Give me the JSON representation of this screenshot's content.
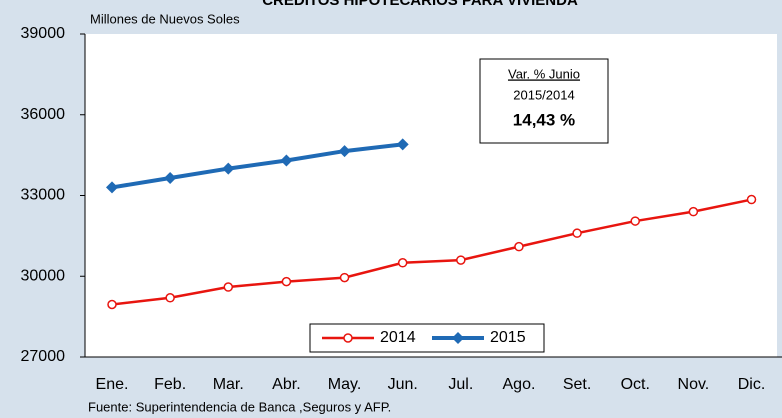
{
  "chart_data": {
    "type": "line",
    "title": "CRÉDITOS HIPOTECARIOS PARA VIVIENDA",
    "subtitle": "Millones de Nuevos Soles",
    "source": "Fuente: Superintendencia de Banca ,Seguros y AFP.",
    "annotation": {
      "line1": "Var. % Junio",
      "line2": "2015/2014",
      "line3": "14,43 %"
    },
    "categories": [
      "Ene.",
      "Feb.",
      "Mar.",
      "Abr.",
      "May.",
      "Jun.",
      "Jul.",
      "Ago.",
      "Set.",
      "Oct.",
      "Nov.",
      "Dic."
    ],
    "series": [
      {
        "name": "2014",
        "color": "#e8150f",
        "marker": "circle",
        "values": [
          28950,
          29200,
          29600,
          29800,
          29950,
          30500,
          30600,
          31100,
          31600,
          32050,
          32400,
          32850
        ]
      },
      {
        "name": "2015",
        "color": "#1f6ab5",
        "marker": "diamond",
        "values": [
          33300,
          33650,
          34000,
          34300,
          34650,
          34900,
          null,
          null,
          null,
          null,
          null,
          null
        ]
      }
    ],
    "ylim": [
      27000,
      39000
    ],
    "yticks": [
      27000,
      30000,
      33000,
      36000,
      39000
    ],
    "grid": false,
    "legend": "bottom"
  }
}
